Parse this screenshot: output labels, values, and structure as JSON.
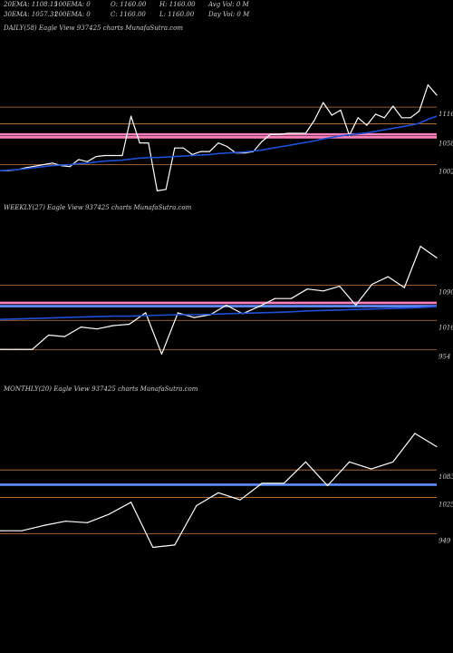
{
  "header": {
    "ema20": "20EMA: 1108.15",
    "ema100": "100EMA: 0",
    "open": "O: 1160.00",
    "high": "H: 1160.00",
    "avg_vol": "Avg Vol: 0  M",
    "ema30": "30EMA: 1057.31",
    "ema200": "200EMA: 0",
    "close": "C: 1160.00",
    "low": "L: 1160.00",
    "day_vol": "Day Vol: 0  M"
  },
  "colors": {
    "background": "#000000",
    "price_line": "#ffffff",
    "ema_line": "#1f4fd6",
    "support_line": "#c8793a",
    "resistance_band": "#ff7fbf",
    "ma_band": "#5f8fff"
  },
  "chart_data": [
    {
      "type": "line",
      "title": "DAILY(58) Eagle   View  937425 charts MunafaSutra.com",
      "y_ticks": [
        "1116",
        "1058",
        "1002"
      ],
      "y_tick_values": [
        1116,
        1058,
        1002
      ],
      "h_lines": [
        {
          "value": 1116,
          "kind": "support"
        },
        {
          "value": 1058,
          "kind": "support"
        },
        {
          "value": 1002,
          "kind": "support"
        },
        {
          "value": 1083,
          "kind": "support"
        }
      ],
      "bands": [
        {
          "value": 1062,
          "color_key": "resistance_band"
        },
        {
          "value": 1056,
          "color_key": "resistance_band"
        }
      ],
      "ylim": [
        940,
        1260
      ],
      "series": [
        {
          "role": "price",
          "values": [
            990,
            990,
            992,
            996,
            999,
            1002,
            1005,
            1000,
            998,
            1012,
            1008,
            1018,
            1020,
            1020,
            1020,
            1098,
            1045,
            1045,
            950,
            953,
            1035,
            1035,
            1022,
            1028,
            1028,
            1045,
            1038,
            1025,
            1025,
            1028,
            1048,
            1062,
            1062,
            1064,
            1064,
            1064,
            1090,
            1125,
            1100,
            1110,
            1060,
            1095,
            1080,
            1102,
            1095,
            1118,
            1095,
            1095,
            1108,
            1160,
            1140
          ]
        },
        {
          "role": "ema",
          "values": [
            990,
            991,
            992,
            994,
            996,
            998,
            1000,
            1001,
            1002,
            1004,
            1005,
            1007,
            1009,
            1010,
            1011,
            1013,
            1015,
            1016,
            1016,
            1017,
            1018,
            1019,
            1020,
            1021,
            1022,
            1024,
            1025,
            1026,
            1027,
            1029,
            1031,
            1034,
            1037,
            1040,
            1043,
            1046,
            1049,
            1053,
            1056,
            1059,
            1061,
            1063,
            1065,
            1068,
            1071,
            1074,
            1077,
            1080,
            1084,
            1092,
            1098
          ]
        }
      ]
    },
    {
      "type": "line",
      "title": "WEEKLY(27) Eagle   View  937425 charts MunafaSutra.com",
      "y_ticks": [
        "1090",
        "1016",
        "954"
      ],
      "y_tick_values": [
        1090,
        1016,
        954
      ],
      "h_lines": [
        {
          "value": 1090,
          "kind": "support"
        },
        {
          "value": 1016,
          "kind": "support"
        },
        {
          "value": 954,
          "kind": "support"
        }
      ],
      "bands": [
        {
          "value": 1053,
          "color_key": "resistance_band"
        },
        {
          "value": 1046,
          "color_key": "ma_band"
        }
      ],
      "ylim": [
        900,
        1240
      ],
      "series": [
        {
          "role": "price",
          "values": [
            955,
            955,
            955,
            985,
            982,
            1002,
            998,
            1005,
            1008,
            1032,
            945,
            1032,
            1022,
            1028,
            1048,
            1030,
            1045,
            1062,
            1062,
            1082,
            1078,
            1088,
            1048,
            1092,
            1108,
            1085,
            1172,
            1148
          ]
        },
        {
          "role": "ema",
          "values": [
            1018,
            1019,
            1020,
            1021,
            1022,
            1023,
            1024,
            1025,
            1025,
            1026,
            1027,
            1028,
            1028,
            1029,
            1030,
            1031,
            1032,
            1033,
            1034,
            1036,
            1037,
            1038,
            1039,
            1040,
            1041,
            1042,
            1043,
            1045
          ]
        }
      ]
    },
    {
      "type": "line",
      "title": "MONTHLY(20) Eagle   View  937425 charts MunafaSutra.com",
      "y_ticks": [
        "1083",
        "1025",
        "949"
      ],
      "y_tick_values": [
        1083,
        1025,
        949
      ],
      "h_lines": [
        {
          "value": 1083,
          "kind": "support"
        },
        {
          "value": 1025,
          "kind": "support"
        },
        {
          "value": 949,
          "kind": "support"
        }
      ],
      "bands": [
        {
          "value": 1052,
          "color_key": "ma_band"
        }
      ],
      "ylim": [
        900,
        1240
      ],
      "series": [
        {
          "role": "price",
          "values": [
            955,
            955,
            966,
            975,
            972,
            990,
            1015,
            920,
            925,
            1008,
            1035,
            1020,
            1055,
            1055,
            1100,
            1050,
            1100,
            1085,
            1100,
            1160,
            1132
          ]
        }
      ]
    }
  ]
}
